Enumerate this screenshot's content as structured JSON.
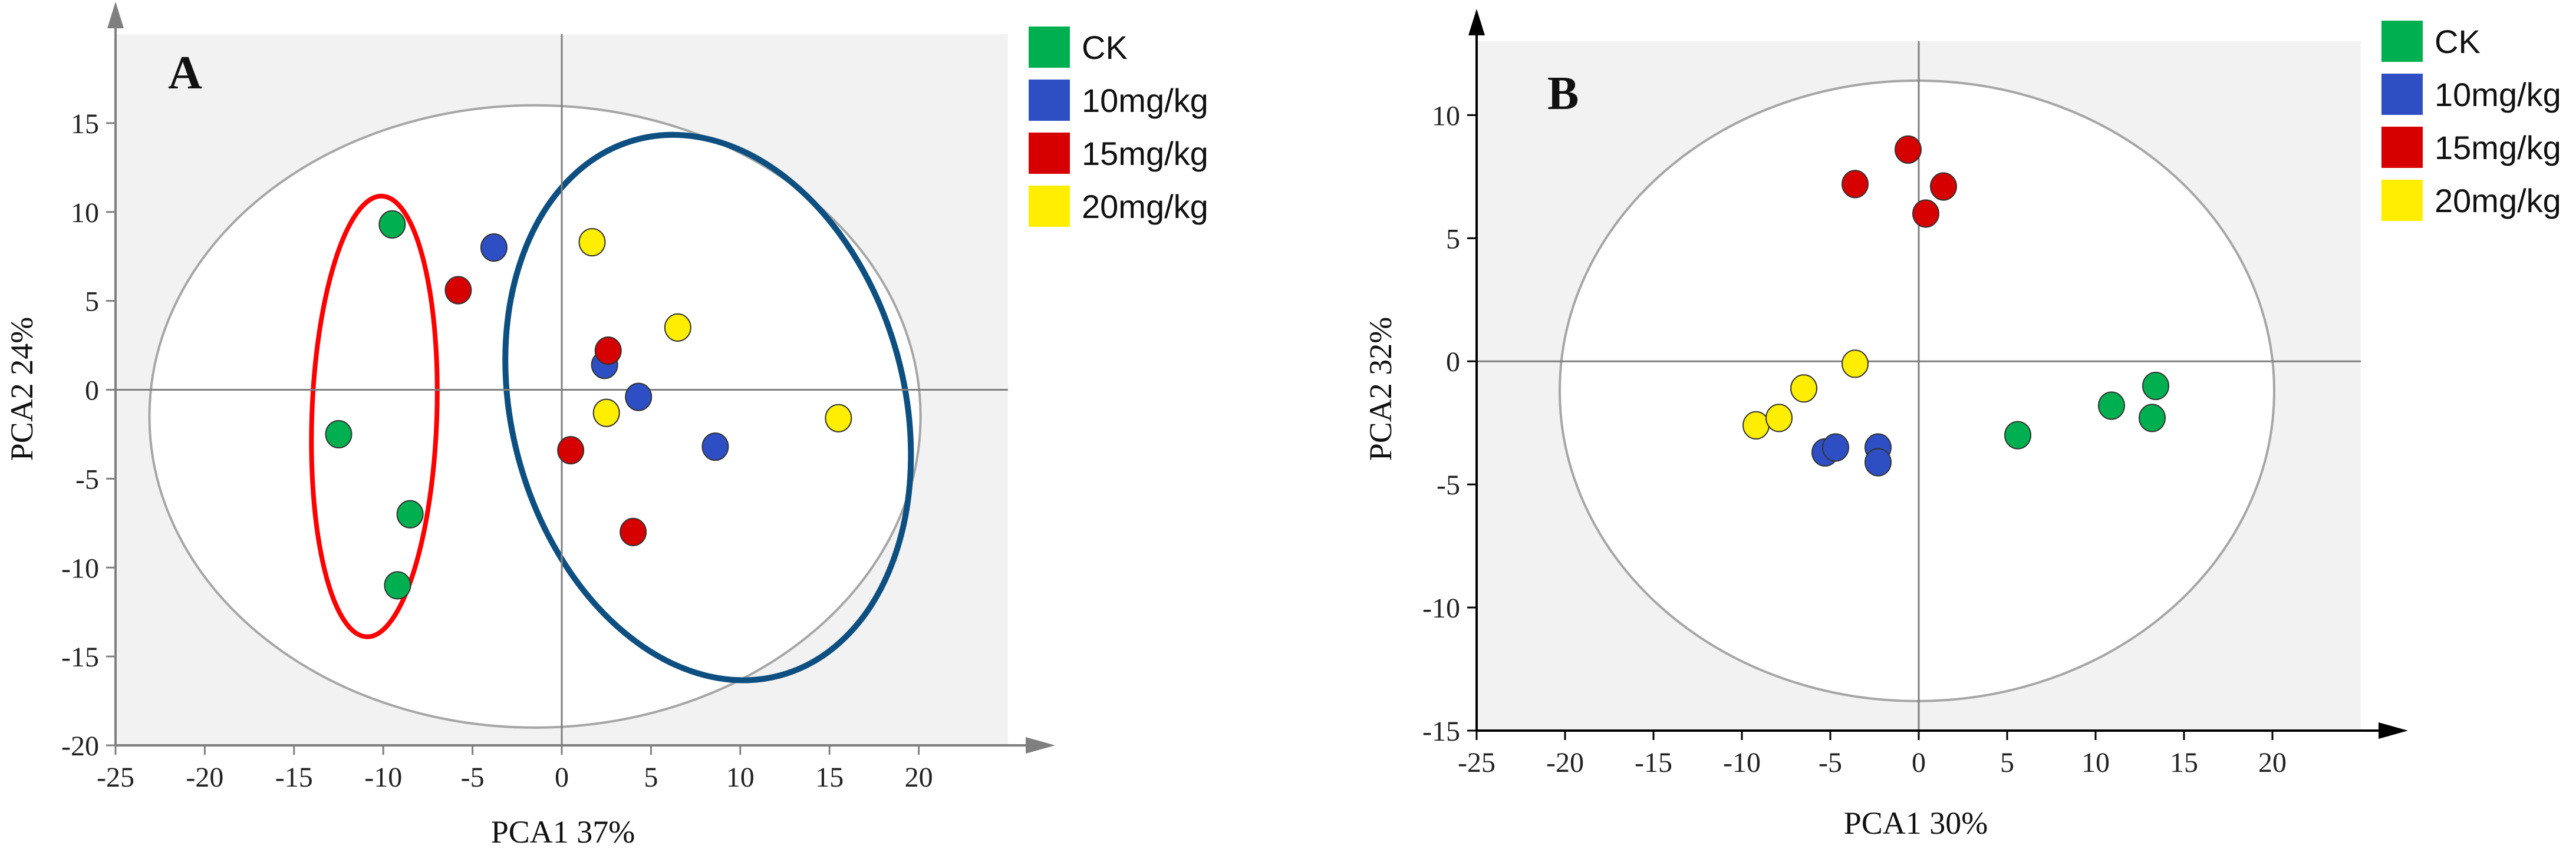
{
  "colors": {
    "CK": "#00b050",
    "10mg/kg": "#2e4fc4",
    "15mg/kg": "#d60000",
    "20mg/kg": "#ffee00",
    "plot_bg": "#f2f2f2",
    "axis": "#7f7f7f",
    "ellipse_gray": "#a6a6a6",
    "ellipse_red": "#ff0000",
    "ellipse_blue": "#0d4f80"
  },
  "chart_data": [
    {
      "type": "scatter",
      "panel": "A",
      "xlabel": "PCA1 37%",
      "ylabel": "PCA2 24%",
      "xlim": [
        -25,
        25
      ],
      "ylim": [
        -20,
        20
      ],
      "xticks": [
        -25,
        -20,
        -15,
        -10,
        -5,
        0,
        5,
        10,
        15,
        20
      ],
      "yticks": [
        -20,
        -15,
        -10,
        -5,
        0,
        5,
        10,
        15
      ],
      "tick_labels_x": [
        "-25",
        "-20",
        "-15",
        "-10",
        "-5",
        "0",
        "5",
        "10",
        "15",
        "20"
      ],
      "tick_labels_y": [
        "-20",
        "-15",
        "-10",
        "-5",
        "0",
        "5",
        "10",
        "15"
      ],
      "legend": [
        "CK",
        "10mg/kg",
        "15mg/kg",
        "20mg/kg"
      ],
      "series": [
        {
          "name": "CK",
          "points": [
            [
              -9.5,
              9.3
            ],
            [
              -12.5,
              -2.5
            ],
            [
              -8.5,
              -7.0
            ],
            [
              -9.2,
              -11.0
            ]
          ]
        },
        {
          "name": "10mg/kg",
          "points": [
            [
              -3.8,
              8.0
            ],
            [
              2.4,
              1.4
            ],
            [
              4.3,
              -0.4
            ],
            [
              8.6,
              -3.2
            ]
          ]
        },
        {
          "name": "15mg/kg",
          "points": [
            [
              -5.8,
              5.6
            ],
            [
              2.6,
              2.2
            ],
            [
              0.5,
              -3.4
            ],
            [
              4.0,
              -8.0
            ]
          ]
        },
        {
          "name": "20mg/kg",
          "points": [
            [
              1.7,
              8.3
            ],
            [
              6.5,
              3.5
            ],
            [
              2.5,
              -1.3
            ],
            [
              15.5,
              -1.6
            ]
          ]
        }
      ],
      "ellipses": [
        {
          "role": "confidence",
          "center": [
            -1.5,
            -1.5
          ],
          "radii": [
            21.6,
            17.5
          ],
          "angle": 0
        },
        {
          "role": "group-CK",
          "center": [
            -10.5,
            -1.5
          ],
          "radii": [
            3.5,
            12.4
          ],
          "angle": -2
        },
        {
          "role": "group-treated",
          "center": [
            8.2,
            -1.0
          ],
          "radii": [
            11.0,
            15.6
          ],
          "angle": 15
        }
      ]
    },
    {
      "type": "scatter",
      "panel": "B",
      "xlabel": "PCA1 30%",
      "ylabel": "PCA2 32%",
      "xlim": [
        -25,
        25
      ],
      "ylim": [
        -15,
        13
      ],
      "xticks": [
        -25,
        -20,
        -15,
        -10,
        -5,
        0,
        5,
        10,
        15,
        20
      ],
      "yticks": [
        -15,
        -10,
        -5,
        0,
        5,
        10
      ],
      "tick_labels_x": [
        "-25",
        "-20",
        "-15",
        "-10",
        "-5",
        "0",
        "5",
        "10",
        "15",
        "20"
      ],
      "tick_labels_y": [
        "-15",
        "-10",
        "-5",
        "0",
        "5",
        "10"
      ],
      "legend": [
        "CK",
        "10mg/kg",
        "15mg/kg",
        "20mg/kg"
      ],
      "series": [
        {
          "name": "CK",
          "points": [
            [
              5.6,
              -3.0
            ],
            [
              10.9,
              -1.8
            ],
            [
              13.2,
              -2.3
            ],
            [
              13.4,
              -1.0
            ]
          ]
        },
        {
          "name": "10mg/kg",
          "points": [
            [
              -5.3,
              -3.7
            ],
            [
              -4.7,
              -3.5
            ],
            [
              -2.3,
              -3.5
            ],
            [
              -2.3,
              -4.1
            ]
          ]
        },
        {
          "name": "15mg/kg",
          "points": [
            [
              -3.6,
              7.2
            ],
            [
              -0.6,
              8.6
            ],
            [
              0.4,
              6.0
            ],
            [
              1.4,
              7.1
            ]
          ]
        },
        {
          "name": "20mg/kg",
          "points": [
            [
              -9.2,
              -2.6
            ],
            [
              -7.9,
              -2.3
            ],
            [
              -6.5,
              -1.1
            ],
            [
              -3.6,
              -0.1
            ]
          ]
        }
      ],
      "ellipses": [
        {
          "role": "confidence",
          "center": [
            -0.1,
            -1.2
          ],
          "radii": [
            20.2,
            12.6
          ],
          "angle": 0
        }
      ]
    }
  ]
}
